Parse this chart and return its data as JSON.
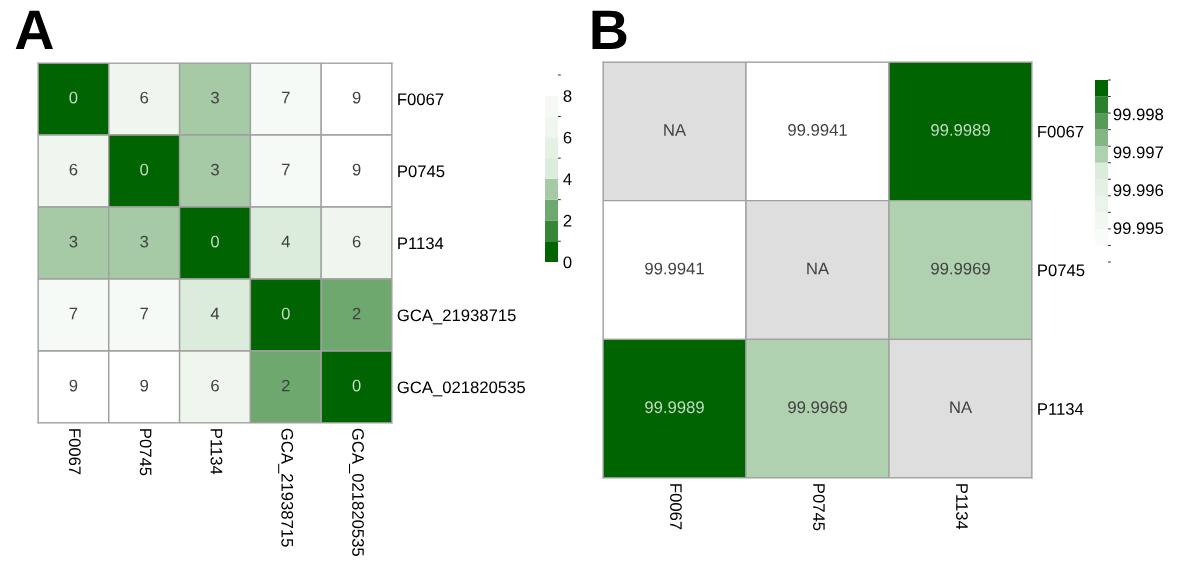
{
  "chart_data": [
    {
      "type": "heatmap",
      "title": "A",
      "categories": [
        "F0067",
        "P0745",
        "P1134",
        "GCA_21938715",
        "GCA_021820535"
      ],
      "y_categories": [
        "F0067",
        "P0745",
        "P1134",
        "GCA_21938715",
        "GCA_021820535"
      ],
      "cells": [
        [
          0,
          6,
          3,
          7,
          9
        ],
        [
          6,
          0,
          3,
          7,
          9
        ],
        [
          3,
          3,
          0,
          4,
          6
        ],
        [
          7,
          7,
          4,
          0,
          2
        ],
        [
          9,
          9,
          6,
          2,
          0
        ]
      ],
      "data_labels": true,
      "clim": [
        0,
        9
      ],
      "cticks": [
        0,
        2,
        4,
        6,
        8
      ]
    },
    {
      "type": "heatmap",
      "title": "B",
      "categories": [
        "F0067",
        "P0745",
        "P1134"
      ],
      "y_categories": [
        "F0067",
        "P0745",
        "P1134"
      ],
      "cells": [
        [
          null,
          99.9941,
          99.9989
        ],
        [
          99.9941,
          null,
          99.9969
        ],
        [
          99.9989,
          99.9969,
          null
        ]
      ],
      "cell_labels": [
        [
          "NA",
          "99.9941",
          "99.9989"
        ],
        [
          "99.9941",
          "NA",
          "99.9969"
        ],
        [
          "99.9989",
          "99.9969",
          "NA"
        ]
      ],
      "data_labels": true,
      "clim": [
        99.9941,
        99.9989
      ],
      "cticks": [
        99.995,
        99.996,
        99.997,
        99.998
      ]
    }
  ]
}
